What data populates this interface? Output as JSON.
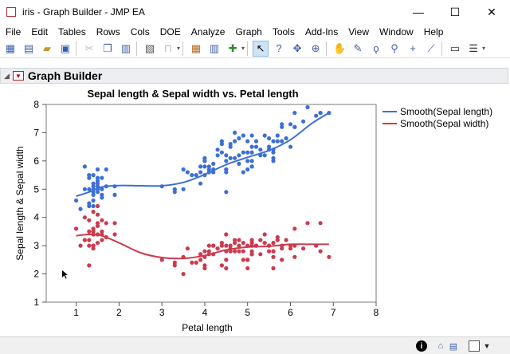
{
  "window": {
    "title": "iris - Graph Builder - JMP EA",
    "minimize": "—",
    "maximize": "☐",
    "close": "✕"
  },
  "menu": [
    "File",
    "Edit",
    "Tables",
    "Rows",
    "Cols",
    "DOE",
    "Analyze",
    "Graph",
    "Tools",
    "Add-Ins",
    "View",
    "Window",
    "Help"
  ],
  "toolbar_icons": [
    "new-table-icon",
    "new-script-icon",
    "open-icon",
    "save-icon",
    "cut-icon",
    "copy-icon",
    "paste-icon",
    "journal-icon",
    "lock-icon",
    "table-icon",
    "column-icon",
    "add-rows-icon",
    "arrow-icon",
    "help-icon",
    "crosshair-icon",
    "target-icon",
    "hand-icon",
    "brush-icon",
    "lasso-icon",
    "magnifier-icon",
    "plus-icon",
    "ruler-icon",
    "annotate-icon",
    "lines-icon"
  ],
  "panel": {
    "title": "Graph Builder"
  },
  "colors": {
    "sepal_length": "#3d6fd4",
    "sepal_width": "#cc3a4e"
  },
  "chart_data": {
    "type": "scatter",
    "title": "Sepal length & Sepal width vs. Petal length",
    "xlabel": "Petal length",
    "ylabel": "Sepal length & Sepal width",
    "xlim": [
      0.3,
      8
    ],
    "ylim": [
      1,
      8
    ],
    "xticks": [
      1,
      2,
      3,
      4,
      5,
      6,
      7,
      8
    ],
    "yticks": [
      1,
      2,
      3,
      4,
      5,
      6,
      7,
      8
    ],
    "grid": false,
    "legend_position": "right",
    "series": [
      {
        "name": "Smooth(Sepal length)",
        "color": "#3d6fd4",
        "points": [
          [
            1.0,
            4.6
          ],
          [
            1.1,
            4.3
          ],
          [
            1.2,
            5.0
          ],
          [
            1.2,
            5.8
          ],
          [
            1.3,
            4.4
          ],
          [
            1.3,
            5.4
          ],
          [
            1.3,
            4.5
          ],
          [
            1.3,
            5.5
          ],
          [
            1.3,
            5.0
          ],
          [
            1.4,
            5.1
          ],
          [
            1.4,
            4.9
          ],
          [
            1.4,
            5.0
          ],
          [
            1.4,
            4.6
          ],
          [
            1.4,
            4.4
          ],
          [
            1.4,
            5.2
          ],
          [
            1.4,
            5.5
          ],
          [
            1.4,
            4.8
          ],
          [
            1.5,
            5.0
          ],
          [
            1.5,
            5.4
          ],
          [
            1.5,
            5.2
          ],
          [
            1.5,
            4.9
          ],
          [
            1.5,
            5.7
          ],
          [
            1.5,
            5.3
          ],
          [
            1.5,
            5.1
          ],
          [
            1.6,
            4.8
          ],
          [
            1.6,
            5.0
          ],
          [
            1.6,
            4.7
          ],
          [
            1.6,
            5.4
          ],
          [
            1.7,
            5.7
          ],
          [
            1.7,
            5.1
          ],
          [
            1.9,
            4.8
          ],
          [
            1.9,
            5.1
          ],
          [
            3.0,
            5.1
          ],
          [
            3.3,
            4.9
          ],
          [
            3.3,
            5.0
          ],
          [
            3.5,
            5.7
          ],
          [
            3.5,
            5.0
          ],
          [
            3.6,
            5.6
          ],
          [
            3.7,
            5.5
          ],
          [
            3.8,
            5.5
          ],
          [
            3.9,
            5.6
          ],
          [
            3.9,
            5.8
          ],
          [
            3.9,
            5.2
          ],
          [
            4.0,
            5.5
          ],
          [
            4.0,
            6.0
          ],
          [
            4.0,
            5.8
          ],
          [
            4.0,
            6.1
          ],
          [
            4.1,
            5.6
          ],
          [
            4.1,
            5.7
          ],
          [
            4.1,
            5.8
          ],
          [
            4.2,
            5.9
          ],
          [
            4.2,
            5.7
          ],
          [
            4.2,
            5.6
          ],
          [
            4.3,
            6.4
          ],
          [
            4.3,
            6.2
          ],
          [
            4.4,
            6.7
          ],
          [
            4.4,
            6.3
          ],
          [
            4.4,
            6.6
          ],
          [
            4.5,
            5.7
          ],
          [
            4.5,
            5.6
          ],
          [
            4.5,
            6.0
          ],
          [
            4.5,
            6.2
          ],
          [
            4.5,
            4.9
          ],
          [
            4.6,
            6.5
          ],
          [
            4.6,
            6.6
          ],
          [
            4.6,
            6.1
          ],
          [
            4.7,
            7.0
          ],
          [
            4.7,
            6.1
          ],
          [
            4.7,
            6.7
          ],
          [
            4.8,
            6.8
          ],
          [
            4.8,
            5.9
          ],
          [
            4.8,
            6.2
          ],
          [
            4.9,
            6.9
          ],
          [
            4.9,
            6.3
          ],
          [
            4.9,
            5.6
          ],
          [
            5.0,
            6.7
          ],
          [
            5.0,
            6.0
          ],
          [
            5.0,
            5.7
          ],
          [
            5.0,
            6.3
          ],
          [
            5.1,
            5.8
          ],
          [
            5.1,
            6.0
          ],
          [
            5.1,
            6.5
          ],
          [
            5.1,
            6.9
          ],
          [
            5.1,
            5.8
          ],
          [
            5.1,
            6.3
          ],
          [
            5.2,
            6.5
          ],
          [
            5.2,
            6.7
          ],
          [
            5.3,
            6.4
          ],
          [
            5.3,
            6.2
          ],
          [
            5.4,
            6.2
          ],
          [
            5.4,
            6.9
          ],
          [
            5.5,
            6.5
          ],
          [
            5.5,
            6.4
          ],
          [
            5.5,
            6.8
          ],
          [
            5.6,
            6.3
          ],
          [
            5.6,
            6.4
          ],
          [
            5.6,
            6.0
          ],
          [
            5.6,
            6.1
          ],
          [
            5.6,
            6.7
          ],
          [
            5.7,
            6.9
          ],
          [
            5.7,
            6.7
          ],
          [
            5.8,
            7.2
          ],
          [
            5.8,
            6.7
          ],
          [
            5.8,
            7.3
          ],
          [
            5.9,
            6.8
          ],
          [
            6.0,
            6.5
          ],
          [
            6.0,
            7.3
          ],
          [
            6.1,
            7.2
          ],
          [
            6.1,
            7.7
          ],
          [
            6.1,
            7.2
          ],
          [
            6.3,
            7.4
          ],
          [
            6.4,
            7.9
          ],
          [
            6.6,
            7.6
          ],
          [
            6.7,
            7.7
          ],
          [
            6.7,
            7.7
          ],
          [
            6.9,
            7.7
          ]
        ],
        "smooth": [
          [
            1.0,
            4.75
          ],
          [
            1.3,
            4.9
          ],
          [
            1.6,
            5.08
          ],
          [
            2.0,
            5.13
          ],
          [
            2.5,
            5.12
          ],
          [
            3.0,
            5.12
          ],
          [
            3.5,
            5.24
          ],
          [
            4.0,
            5.52
          ],
          [
            4.5,
            5.87
          ],
          [
            5.0,
            6.13
          ],
          [
            5.5,
            6.37
          ],
          [
            6.0,
            6.75
          ],
          [
            6.5,
            7.33
          ],
          [
            6.9,
            7.7
          ]
        ]
      },
      {
        "name": "Smooth(Sepal width)",
        "color": "#cc3a4e",
        "points": [
          [
            1.0,
            3.6
          ],
          [
            1.1,
            3.0
          ],
          [
            1.2,
            4.0
          ],
          [
            1.2,
            3.2
          ],
          [
            1.3,
            3.0
          ],
          [
            1.3,
            3.9
          ],
          [
            1.3,
            2.3
          ],
          [
            1.3,
            3.5
          ],
          [
            1.3,
            3.2
          ],
          [
            1.4,
            3.5
          ],
          [
            1.4,
            3.0
          ],
          [
            1.4,
            3.6
          ],
          [
            1.4,
            3.4
          ],
          [
            1.4,
            2.9
          ],
          [
            1.4,
            3.4
          ],
          [
            1.4,
            4.2
          ],
          [
            1.4,
            3.0
          ],
          [
            1.5,
            3.4
          ],
          [
            1.5,
            3.7
          ],
          [
            1.5,
            4.1
          ],
          [
            1.5,
            3.1
          ],
          [
            1.5,
            4.4
          ],
          [
            1.5,
            3.7
          ],
          [
            1.5,
            3.8
          ],
          [
            1.6,
            3.4
          ],
          [
            1.6,
            3.5
          ],
          [
            1.6,
            3.2
          ],
          [
            1.6,
            3.9
          ],
          [
            1.7,
            3.8
          ],
          [
            1.7,
            3.3
          ],
          [
            1.9,
            3.4
          ],
          [
            1.9,
            3.8
          ],
          [
            3.0,
            2.5
          ],
          [
            3.3,
            2.4
          ],
          [
            3.3,
            2.3
          ],
          [
            3.5,
            2.6
          ],
          [
            3.5,
            2.0
          ],
          [
            3.6,
            2.9
          ],
          [
            3.7,
            2.4
          ],
          [
            3.8,
            2.4
          ],
          [
            3.9,
            2.7
          ],
          [
            3.9,
            2.7
          ],
          [
            3.9,
            2.5
          ],
          [
            4.0,
            2.3
          ],
          [
            4.0,
            2.2
          ],
          [
            4.0,
            2.6
          ],
          [
            4.0,
            2.8
          ],
          [
            4.1,
            3.0
          ],
          [
            4.1,
            2.8
          ],
          [
            4.1,
            2.7
          ],
          [
            4.2,
            3.0
          ],
          [
            4.2,
            3.0
          ],
          [
            4.2,
            2.7
          ],
          [
            4.3,
            2.9
          ],
          [
            4.3,
            2.9
          ],
          [
            4.4,
            3.1
          ],
          [
            4.4,
            2.3
          ],
          [
            4.4,
            3.0
          ],
          [
            4.5,
            2.8
          ],
          [
            4.5,
            3.0
          ],
          [
            4.5,
            2.2
          ],
          [
            4.5,
            3.4
          ],
          [
            4.5,
            2.5
          ],
          [
            4.6,
            2.8
          ],
          [
            4.6,
            2.9
          ],
          [
            4.6,
            3.0
          ],
          [
            4.7,
            3.2
          ],
          [
            4.7,
            2.8
          ],
          [
            4.7,
            3.1
          ],
          [
            4.8,
            2.8
          ],
          [
            4.8,
            3.2
          ],
          [
            4.8,
            3.0
          ],
          [
            4.9,
            3.1
          ],
          [
            4.9,
            2.5
          ],
          [
            4.9,
            2.8
          ],
          [
            5.0,
            3.0
          ],
          [
            5.0,
            2.2
          ],
          [
            5.0,
            2.5
          ],
          [
            5.0,
            2.5
          ],
          [
            5.1,
            2.7
          ],
          [
            5.1,
            2.7
          ],
          [
            5.1,
            3.2
          ],
          [
            5.1,
            3.1
          ],
          [
            5.1,
            2.8
          ],
          [
            5.1,
            3.0
          ],
          [
            5.2,
            3.0
          ],
          [
            5.2,
            3.0
          ],
          [
            5.3,
            3.2
          ],
          [
            5.3,
            2.7
          ],
          [
            5.4,
            3.4
          ],
          [
            5.4,
            3.1
          ],
          [
            5.5,
            3.0
          ],
          [
            5.5,
            2.8
          ],
          [
            5.5,
            3.0
          ],
          [
            5.6,
            2.8
          ],
          [
            5.6,
            2.8
          ],
          [
            5.6,
            2.2
          ],
          [
            5.6,
            2.6
          ],
          [
            5.6,
            3.1
          ],
          [
            5.7,
            3.2
          ],
          [
            5.7,
            3.3
          ],
          [
            5.8,
            3.0
          ],
          [
            5.8,
            2.5
          ],
          [
            5.8,
            2.9
          ],
          [
            5.9,
            3.2
          ],
          [
            6.0,
            3.0
          ],
          [
            6.0,
            2.9
          ],
          [
            6.1,
            3.6
          ],
          [
            6.1,
            2.6
          ],
          [
            6.1,
            3.0
          ],
          [
            6.3,
            2.9
          ],
          [
            6.4,
            3.8
          ],
          [
            6.6,
            3.0
          ],
          [
            6.7,
            3.8
          ],
          [
            6.7,
            2.8
          ],
          [
            6.9,
            2.6
          ]
        ],
        "smooth": [
          [
            1.0,
            3.35
          ],
          [
            1.3,
            3.4
          ],
          [
            1.6,
            3.35
          ],
          [
            2.0,
            3.1
          ],
          [
            2.5,
            2.75
          ],
          [
            3.0,
            2.58
          ],
          [
            3.5,
            2.55
          ],
          [
            4.0,
            2.65
          ],
          [
            4.5,
            2.85
          ],
          [
            5.0,
            2.95
          ],
          [
            5.5,
            2.98
          ],
          [
            6.0,
            3.05
          ],
          [
            6.5,
            3.05
          ],
          [
            6.9,
            3.05
          ]
        ]
      }
    ]
  }
}
